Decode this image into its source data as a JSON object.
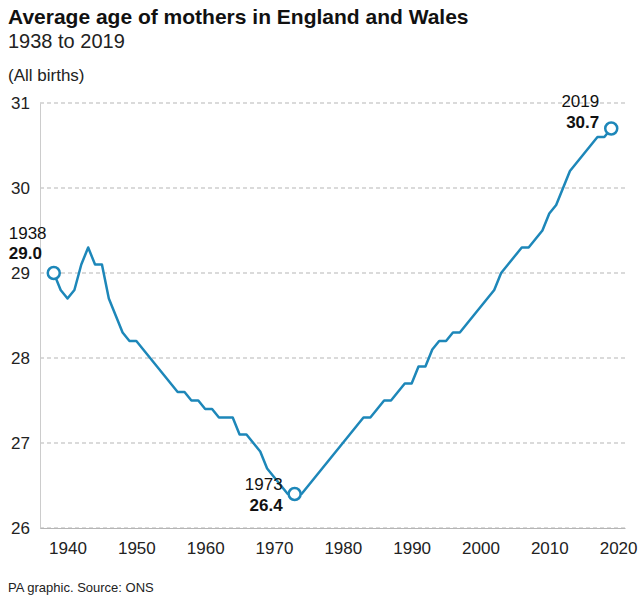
{
  "chart_data": {
    "type": "line",
    "title": "Average age of mothers in England and Wales",
    "subtitle": "1938 to 2019",
    "ylabel": "(All births)",
    "source": "PA graphic. Source: ONS",
    "color": "#1d87b9",
    "grid": true,
    "x": [
      1938,
      1939,
      1940,
      1941,
      1942,
      1943,
      1944,
      1945,
      1946,
      1947,
      1948,
      1949,
      1950,
      1951,
      1952,
      1953,
      1954,
      1955,
      1956,
      1957,
      1958,
      1959,
      1960,
      1961,
      1962,
      1963,
      1964,
      1965,
      1966,
      1967,
      1968,
      1969,
      1970,
      1971,
      1972,
      1973,
      1974,
      1975,
      1976,
      1977,
      1978,
      1979,
      1980,
      1981,
      1982,
      1983,
      1984,
      1985,
      1986,
      1987,
      1988,
      1989,
      1990,
      1991,
      1992,
      1993,
      1994,
      1995,
      1996,
      1997,
      1998,
      1999,
      2000,
      2001,
      2002,
      2003,
      2004,
      2005,
      2006,
      2007,
      2008,
      2009,
      2010,
      2011,
      2012,
      2013,
      2014,
      2015,
      2016,
      2017,
      2018,
      2019
    ],
    "values": [
      29.0,
      28.8,
      28.7,
      28.8,
      29.1,
      29.3,
      29.1,
      29.1,
      28.7,
      28.5,
      28.3,
      28.2,
      28.2,
      28.1,
      28.0,
      27.9,
      27.8,
      27.7,
      27.6,
      27.6,
      27.5,
      27.5,
      27.4,
      27.4,
      27.3,
      27.3,
      27.3,
      27.1,
      27.1,
      27.0,
      26.9,
      26.7,
      26.6,
      26.5,
      26.4,
      26.4,
      26.4,
      26.5,
      26.6,
      26.7,
      26.8,
      26.9,
      27.0,
      27.1,
      27.2,
      27.3,
      27.3,
      27.4,
      27.5,
      27.5,
      27.6,
      27.7,
      27.7,
      27.9,
      27.9,
      28.1,
      28.2,
      28.2,
      28.3,
      28.3,
      28.4,
      28.5,
      28.6,
      28.7,
      28.8,
      29.0,
      29.1,
      29.2,
      29.3,
      29.3,
      29.4,
      29.5,
      29.7,
      29.8,
      30.0,
      30.2,
      30.3,
      30.4,
      30.5,
      30.6,
      30.6,
      30.7
    ],
    "xlim": [
      1936,
      2021
    ],
    "xticks": [
      1940,
      1950,
      1960,
      1970,
      1980,
      1990,
      2000,
      2010,
      2020
    ],
    "ylim": [
      26,
      31
    ],
    "yticks": [
      26,
      27,
      28,
      29,
      30,
      31
    ],
    "annotations": [
      {
        "x": 1938,
        "value": 29.0,
        "label": "1938",
        "value_label": "29.0"
      },
      {
        "x": 1973,
        "value": 26.4,
        "label": "1973",
        "value_label": "26.4"
      },
      {
        "x": 2019,
        "value": 30.7,
        "label": "2019",
        "value_label": "30.7"
      }
    ]
  }
}
